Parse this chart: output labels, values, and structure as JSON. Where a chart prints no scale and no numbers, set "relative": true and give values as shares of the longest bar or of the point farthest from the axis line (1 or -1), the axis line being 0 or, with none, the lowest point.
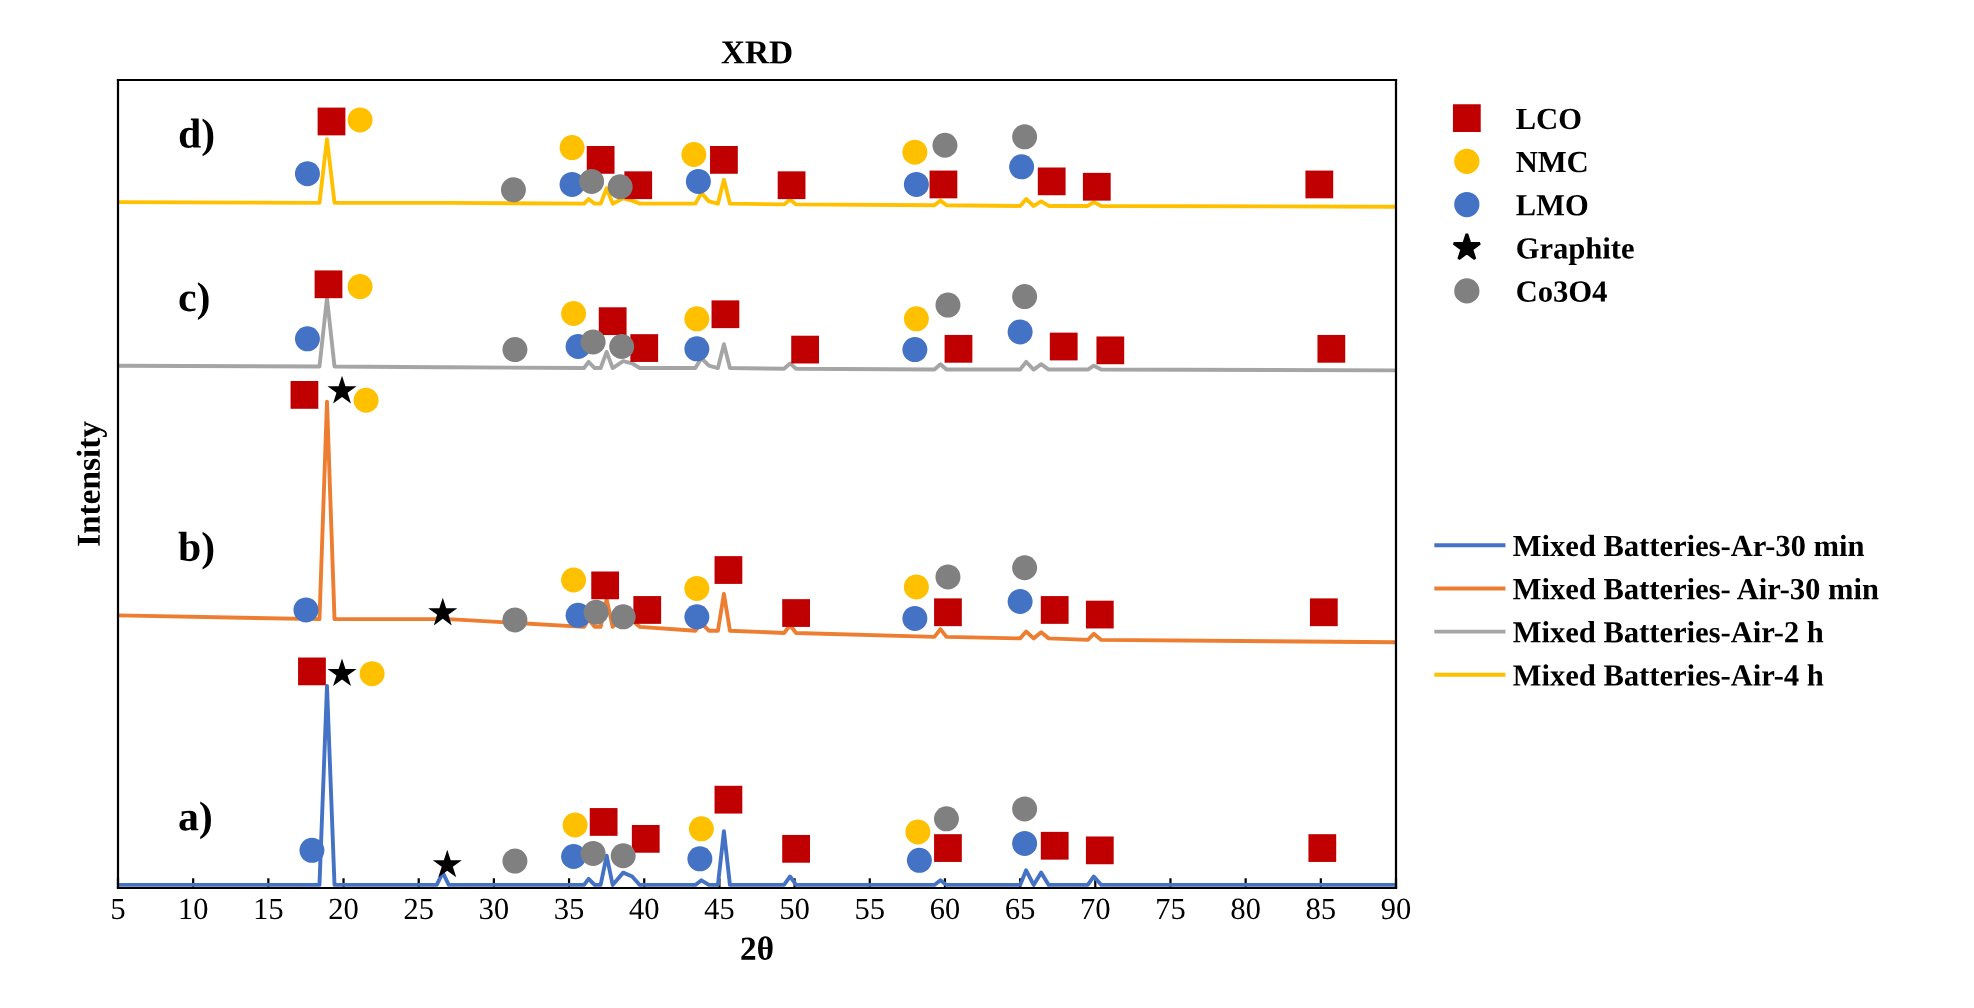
{
  "chart_data": {
    "type": "line",
    "title": "XRD",
    "xlabel": "2θ",
    "ylabel": "Intensity",
    "relative": true,
    "xlim": [
      5,
      90
    ],
    "xticks": [
      5,
      10,
      15,
      20,
      25,
      30,
      35,
      40,
      45,
      50,
      55,
      60,
      65,
      70,
      75,
      80,
      85,
      90
    ],
    "tick_labels": "x",
    "grid": false,
    "legend": "right",
    "marker": "none",
    "line_style": "solid",
    "annotations": [
      "a)",
      "b)",
      "c)",
      "d)"
    ],
    "x": [
      5,
      18.4,
      18.9,
      19.4,
      26.2,
      26.6,
      27.0,
      36.0,
      36.3,
      36.7,
      37.1,
      37.5,
      37.9,
      38.6,
      39.2,
      39.7,
      43.4,
      43.8,
      44.3,
      44.9,
      45.3,
      45.7,
      49.3,
      49.7,
      50.1,
      59.3,
      59.7,
      60.1,
      65.0,
      65.4,
      65.9,
      66.4,
      66.9,
      69.5,
      69.9,
      70.4,
      90
    ],
    "series": [
      {
        "name": "Mixed Batteries-Ar-30 min",
        "color": "#4472c4",
        "values": [
          0.004,
          0.004,
          0.263,
          0.004,
          0.004,
          0.02,
          0.004,
          0.004,
          0.012,
          0.004,
          0.004,
          0.042,
          0.004,
          0.02,
          0.015,
          0.004,
          0.004,
          0.01,
          0.004,
          0.004,
          0.074,
          0.004,
          0.004,
          0.015,
          0.004,
          0.004,
          0.01,
          0.004,
          0.004,
          0.023,
          0.004,
          0.02,
          0.004,
          0.004,
          0.015,
          0.004,
          0.004
        ]
      },
      {
        "name": "Mixed Batteries- Air-30 min",
        "color": "#ed7d31",
        "values": [
          0.355,
          0.35,
          0.633,
          0.35,
          0.35,
          0.362,
          0.35,
          0.34,
          0.35,
          0.34,
          0.34,
          0.376,
          0.34,
          0.352,
          0.348,
          0.34,
          0.335,
          0.345,
          0.335,
          0.335,
          0.383,
          0.335,
          0.332,
          0.342,
          0.332,
          0.327,
          0.337,
          0.327,
          0.325,
          0.334,
          0.325,
          0.333,
          0.325,
          0.323,
          0.331,
          0.323,
          0.32
        ]
      },
      {
        "name": "Mixed Batteries-Air-2 h",
        "color": "#a5a5a5",
        "values": [
          0.68,
          0.679,
          0.768,
          0.679,
          0.678,
          0.678,
          0.678,
          0.677,
          0.685,
          0.677,
          0.677,
          0.698,
          0.677,
          0.686,
          0.683,
          0.677,
          0.677,
          0.69,
          0.68,
          0.677,
          0.708,
          0.677,
          0.676,
          0.683,
          0.676,
          0.675,
          0.682,
          0.675,
          0.675,
          0.685,
          0.675,
          0.682,
          0.675,
          0.675,
          0.68,
          0.675,
          0.674
        ]
      },
      {
        "name": "Mixed Batteries-Air-4 h",
        "color": "#ffc000",
        "values": [
          0.893,
          0.892,
          0.975,
          0.892,
          0.892,
          0.892,
          0.892,
          0.891,
          0.897,
          0.891,
          0.891,
          0.911,
          0.891,
          0.898,
          0.895,
          0.891,
          0.891,
          0.905,
          0.894,
          0.891,
          0.922,
          0.891,
          0.89,
          0.896,
          0.89,
          0.889,
          0.895,
          0.889,
          0.888,
          0.897,
          0.888,
          0.894,
          0.888,
          0.888,
          0.893,
          0.888,
          0.887
        ]
      },
      {
        "name": "LCO",
        "type": "scatter",
        "marker": "square",
        "color": "#c00000",
        "x": [
          19.2,
          37.1,
          39.6,
          45.3,
          49.8,
          59.9,
          67.1,
          70.1,
          84.9,
          19.0,
          37.9,
          40.0,
          45.4,
          50.7,
          60.9,
          67.9,
          71.0,
          85.7,
          17.4,
          37.4,
          40.2,
          45.6,
          50.1,
          60.2,
          67.3,
          70.3,
          85.2,
          17.9,
          37.3,
          40.1,
          45.6,
          50.1,
          60.2,
          67.3,
          70.3,
          85.1
        ],
        "values": [
          0.998,
          0.948,
          0.915,
          0.948,
          0.915,
          0.916,
          0.92,
          0.913,
          0.916,
          0.786,
          0.738,
          0.703,
          0.747,
          0.701,
          0.702,
          0.705,
          0.7,
          0.702,
          0.642,
          0.394,
          0.362,
          0.414,
          0.358,
          0.359,
          0.362,
          0.356,
          0.359,
          0.282,
          0.086,
          0.064,
          0.115,
          0.051,
          0.052,
          0.055,
          0.049,
          0.052
        ]
      },
      {
        "name": "NMC",
        "type": "scatter",
        "marker": "circle",
        "color": "#ffc000",
        "x": [
          21.1,
          35.2,
          43.3,
          58.0,
          21.1,
          35.3,
          43.5,
          58.1,
          21.5,
          35.3,
          43.5,
          58.1,
          21.9,
          35.4,
          43.8,
          58.2
        ],
        "values": [
          1.0,
          0.964,
          0.955,
          0.958,
          0.783,
          0.748,
          0.741,
          0.741,
          0.635,
          0.401,
          0.39,
          0.392,
          0.279,
          0.082,
          0.077,
          0.073
        ]
      },
      {
        "name": "LMO",
        "type": "scatter",
        "marker": "circle",
        "color": "#4472c4",
        "x": [
          17.6,
          35.2,
          43.6,
          58.1,
          65.1,
          17.6,
          35.6,
          43.5,
          58.0,
          65.0,
          17.5,
          35.6,
          43.5,
          58.0,
          65.0,
          17.9,
          35.3,
          43.7,
          58.3,
          65.3
        ],
        "values": [
          0.93,
          0.916,
          0.92,
          0.916,
          0.939,
          0.715,
          0.705,
          0.702,
          0.701,
          0.724,
          0.362,
          0.355,
          0.353,
          0.351,
          0.373,
          0.049,
          0.041,
          0.038,
          0.036,
          0.058
        ]
      },
      {
        "name": "Graphite",
        "type": "scatter",
        "marker": "star",
        "color": "#000000",
        "x": [
          19.9,
          26.6,
          19.9,
          26.9
        ],
        "values": [
          0.647,
          0.358,
          0.279,
          0.03
        ]
      },
      {
        "name": "Co3O4",
        "type": "scatter",
        "marker": "circle",
        "color": "#808080",
        "x": [
          31.3,
          36.5,
          38.4,
          60.0,
          65.3,
          31.4,
          36.6,
          38.5,
          60.2,
          65.3,
          31.4,
          36.8,
          38.6,
          60.2,
          65.3,
          31.4,
          36.6,
          38.6,
          60.1,
          65.3
        ],
        "values": [
          0.909,
          0.92,
          0.913,
          0.967,
          0.978,
          0.701,
          0.711,
          0.705,
          0.759,
          0.77,
          0.349,
          0.359,
          0.353,
          0.405,
          0.417,
          0.035,
          0.045,
          0.042,
          0.09,
          0.103
        ]
      }
    ]
  }
}
